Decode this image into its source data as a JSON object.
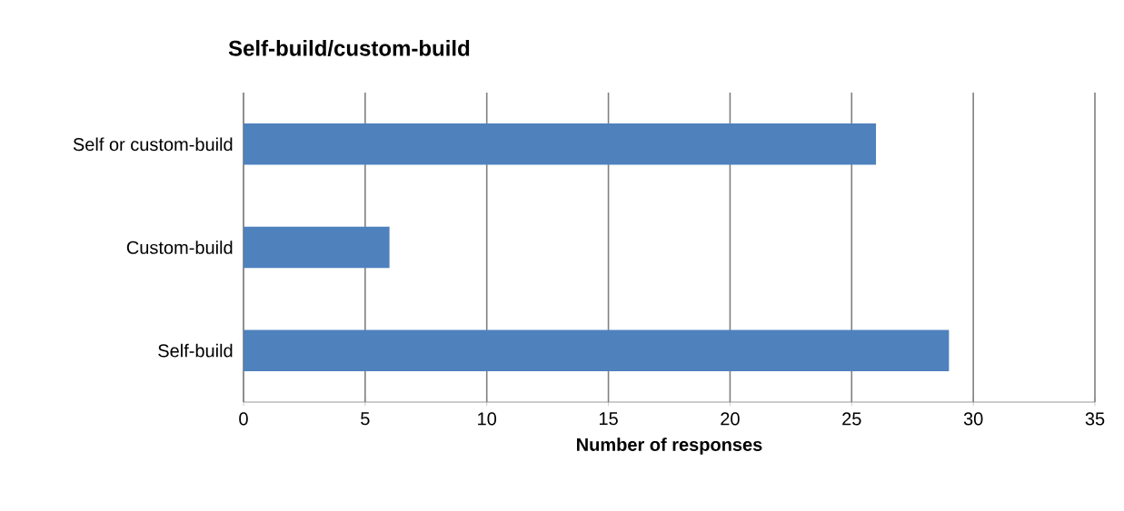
{
  "chart_data": {
    "type": "bar",
    "orientation": "horizontal",
    "title": "Self-build/custom-build",
    "xlabel": "Number of responses",
    "categories": [
      "Self or custom-build",
      "Custom-build",
      "Self-build"
    ],
    "values": [
      26,
      6,
      29
    ],
    "color": "#4f81bd",
    "xlim": [
      0,
      35
    ],
    "xticks": [
      0,
      5,
      10,
      15,
      20,
      25,
      30,
      35
    ],
    "grid": "x"
  }
}
